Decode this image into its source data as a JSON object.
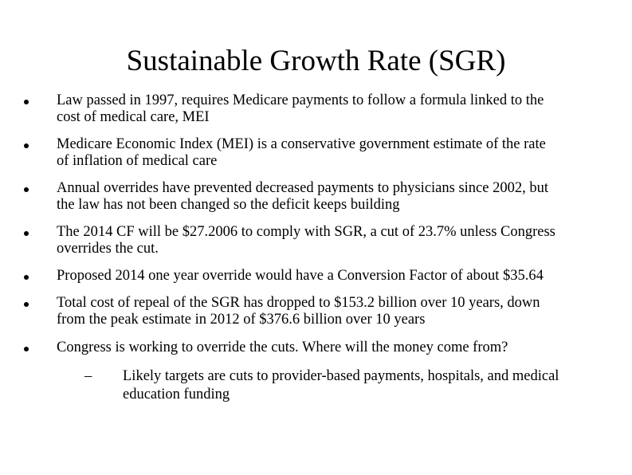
{
  "slide": {
    "title": "Sustainable Growth Rate (SGR)",
    "bullets": [
      {
        "line1": "Law passed in 1997, requires Medicare payments to follow a formula linked to the",
        "line2": "cost of medical care, MEI"
      },
      {
        "line1": "Medicare Economic Index (MEI) is a conservative government estimate of the rate",
        "line2": "of inflation of medical care"
      },
      {
        "line1": "Annual overrides have prevented decreased payments to physicians since 2002, but",
        "line2": "the law has not been changed so the deficit keeps building"
      },
      {
        "line1": "The 2014 CF will be $27.2006 to comply with SGR, a cut of 23.7% unless Congress",
        "line2": "overrides the cut."
      },
      {
        "line1": "Proposed 2014 one year override would have a Conversion Factor of about $35.64",
        "line2": ""
      },
      {
        "line1": "Total cost of repeal of the SGR has dropped to $153.2 billion over 10 years, down",
        "line2": "from the peak estimate in 2012 of $376.6 billion over 10 years"
      },
      {
        "line1": "Congress is working to override the cuts.  Where will the money come from?",
        "line2": ""
      }
    ],
    "sub_bullet": {
      "marker": "–",
      "line1": "Likely targets are cuts to provider-based payments, hospitals, and medical",
      "line2": "education funding"
    }
  }
}
